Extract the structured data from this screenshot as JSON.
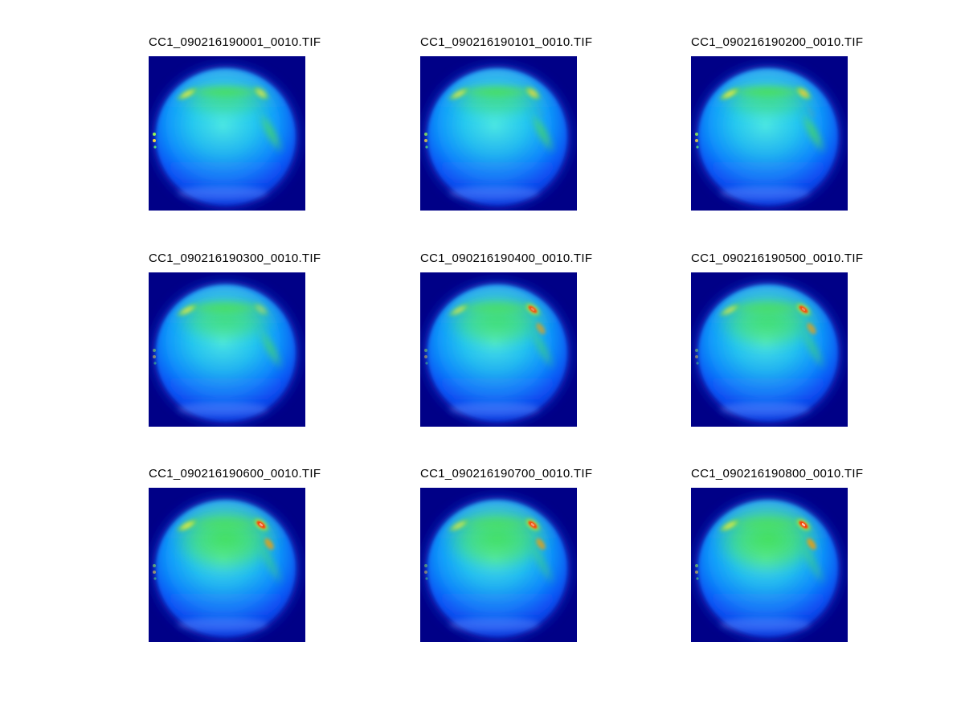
{
  "figure": {
    "type": "image-montage",
    "colormap": "jet",
    "rows": 3,
    "cols": 3
  },
  "palette": {
    "page_background": "#ffffff",
    "tile_background": "#000087",
    "halo_blue": "#0920b4",
    "disk_cyan": "#58ecde",
    "disk_blue": "#1494fa",
    "green": "#46e146",
    "yellow": "#ffee44",
    "red": "#ff2e00",
    "hot_core_white": "#fff6e8",
    "title_text": "#000000"
  },
  "panels": [
    {
      "label": "CC1_090216190001_0010.TIF",
      "appearance": {
        "cap": 0.3,
        "arc": 0.85,
        "ytl": 0.85,
        "ytr": 0.75,
        "red": 0.0,
        "white": 0.0,
        "streak": 0.85,
        "specks": 0.95
      }
    },
    {
      "label": "CC1_090216190101_0010.TIF",
      "appearance": {
        "cap": 0.32,
        "arc": 0.85,
        "ytl": 0.8,
        "ytr": 0.8,
        "red": 0.05,
        "white": 0.0,
        "streak": 0.85,
        "specks": 0.75
      }
    },
    {
      "label": "CC1_090216190200_0010.TIF",
      "appearance": {
        "cap": 0.34,
        "arc": 0.88,
        "ytl": 0.9,
        "ytr": 0.85,
        "red": 0.1,
        "white": 0.0,
        "streak": 0.9,
        "specks": 0.8
      }
    },
    {
      "label": "CC1_090216190300_0010.TIF",
      "appearance": {
        "cap": 0.55,
        "arc": 0.75,
        "ytl": 0.8,
        "ytr": 0.45,
        "red": 0.0,
        "white": 0.0,
        "streak": 0.75,
        "specks": 0.5
      }
    },
    {
      "label": "CC1_090216190400_0010.TIF",
      "appearance": {
        "cap": 0.68,
        "arc": 0.6,
        "ytl": 0.7,
        "ytr": 0.95,
        "red": 0.8,
        "white": 0.3,
        "streak": 0.6,
        "specks": 0.45
      }
    },
    {
      "label": "CC1_090216190500_0010.TIF",
      "appearance": {
        "cap": 0.72,
        "arc": 0.6,
        "ytl": 0.7,
        "ytr": 0.95,
        "red": 0.85,
        "white": 0.35,
        "streak": 0.6,
        "specks": 0.45
      }
    },
    {
      "label": "CC1_090216190600_0010.TIF",
      "appearance": {
        "cap": 0.92,
        "arc": 0.5,
        "ytl": 0.9,
        "ytr": 1.0,
        "red": 0.95,
        "white": 0.6,
        "streak": 0.5,
        "specks": 0.55
      }
    },
    {
      "label": "CC1_090216190700_0010.TIF",
      "appearance": {
        "cap": 0.88,
        "arc": 0.5,
        "ytl": 0.75,
        "ytr": 1.0,
        "red": 0.9,
        "white": 0.5,
        "streak": 0.5,
        "specks": 0.45
      }
    },
    {
      "label": "CC1_090216190800_0010.TIF",
      "appearance": {
        "cap": 0.96,
        "arc": 0.5,
        "ytl": 0.85,
        "ytr": 1.0,
        "red": 1.0,
        "white": 0.8,
        "streak": 0.5,
        "specks": 0.55
      }
    }
  ]
}
